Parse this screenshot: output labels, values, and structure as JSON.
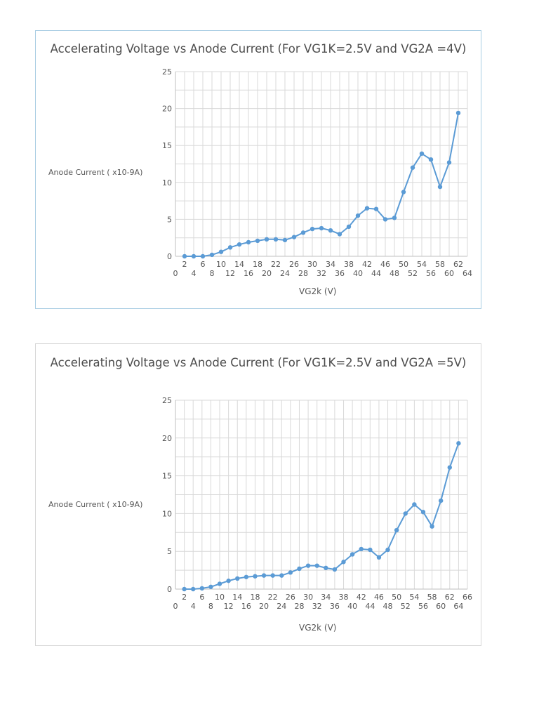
{
  "colors": {
    "series": "#5b9bd5",
    "grid": "#d9d9d9",
    "axis": "#bfbfbf",
    "text": "#555555"
  },
  "chart_data": [
    {
      "type": "line",
      "title": "Accelerating Voltage vs Anode Current (For VG1K=2.5V and VG2A =4V)",
      "xlabel": "VG2k (V)",
      "ylabel": "Anode Current ( x10-9A)",
      "ylim": [
        0,
        25
      ],
      "xlim": [
        0,
        64
      ],
      "yticks": [
        0,
        5,
        10,
        15,
        20,
        25
      ],
      "xticks_even_row": [
        "2",
        "6",
        "10",
        "14",
        "18",
        "22",
        "26",
        "30",
        "34",
        "38",
        "42",
        "46",
        "50",
        "54",
        "58",
        "62"
      ],
      "xticks_odd_row": [
        "0",
        "4",
        "8",
        "12",
        "16",
        "20",
        "24",
        "28",
        "32",
        "36",
        "40",
        "44",
        "48",
        "52",
        "56",
        "60",
        "64"
      ],
      "grid": true,
      "legend": "none",
      "series": [
        {
          "x": [
            2,
            4,
            6,
            8,
            10,
            12,
            14,
            16,
            18,
            20,
            22,
            24,
            26,
            28,
            30,
            32,
            34,
            36,
            38,
            40,
            42,
            44,
            46,
            48,
            50,
            52,
            54,
            56,
            58,
            60,
            62
          ],
          "y": [
            0,
            0,
            0,
            0.2,
            0.6,
            1.2,
            1.6,
            1.9,
            2.1,
            2.3,
            2.3,
            2.2,
            2.6,
            3.2,
            3.7,
            3.8,
            3.5,
            3.0,
            4.0,
            5.5,
            6.5,
            6.4,
            5.0,
            5.2,
            8.7,
            12.0,
            13.9,
            13.1,
            9.4,
            12.7,
            19.4
          ]
        }
      ]
    },
    {
      "type": "line",
      "title": "Accelerating Voltage vs Anode Current (For VG1K=2.5V and VG2A =5V)",
      "xlabel": "VG2k (V)",
      "ylabel": "Anode Current ( x10-9A)",
      "ylim": [
        0,
        25
      ],
      "xlim": [
        0,
        66
      ],
      "yticks": [
        0,
        5,
        10,
        15,
        20,
        25
      ],
      "xticks_even_row": [
        "2",
        "6",
        "10",
        "14",
        "18",
        "22",
        "26",
        "30",
        "34",
        "38",
        "42",
        "46",
        "50",
        "54",
        "58",
        "62",
        "66"
      ],
      "xticks_odd_row": [
        "0",
        "4",
        "8",
        "12",
        "16",
        "20",
        "24",
        "28",
        "32",
        "36",
        "40",
        "44",
        "48",
        "52",
        "56",
        "60",
        "64"
      ],
      "grid": true,
      "legend": "none",
      "series": [
        {
          "x": [
            2,
            4,
            6,
            8,
            10,
            12,
            14,
            16,
            18,
            20,
            22,
            24,
            26,
            28,
            30,
            32,
            34,
            36,
            38,
            40,
            42,
            44,
            46,
            48,
            50,
            52,
            54,
            56,
            58,
            60,
            62,
            64
          ],
          "y": [
            0,
            0,
            0.1,
            0.3,
            0.7,
            1.1,
            1.4,
            1.6,
            1.7,
            1.8,
            1.8,
            1.8,
            2.2,
            2.7,
            3.1,
            3.1,
            2.8,
            2.6,
            3.6,
            4.6,
            5.3,
            5.2,
            4.2,
            5.2,
            7.8,
            10.0,
            11.2,
            10.2,
            8.3,
            11.7,
            16.1,
            19.3
          ]
        }
      ]
    }
  ]
}
